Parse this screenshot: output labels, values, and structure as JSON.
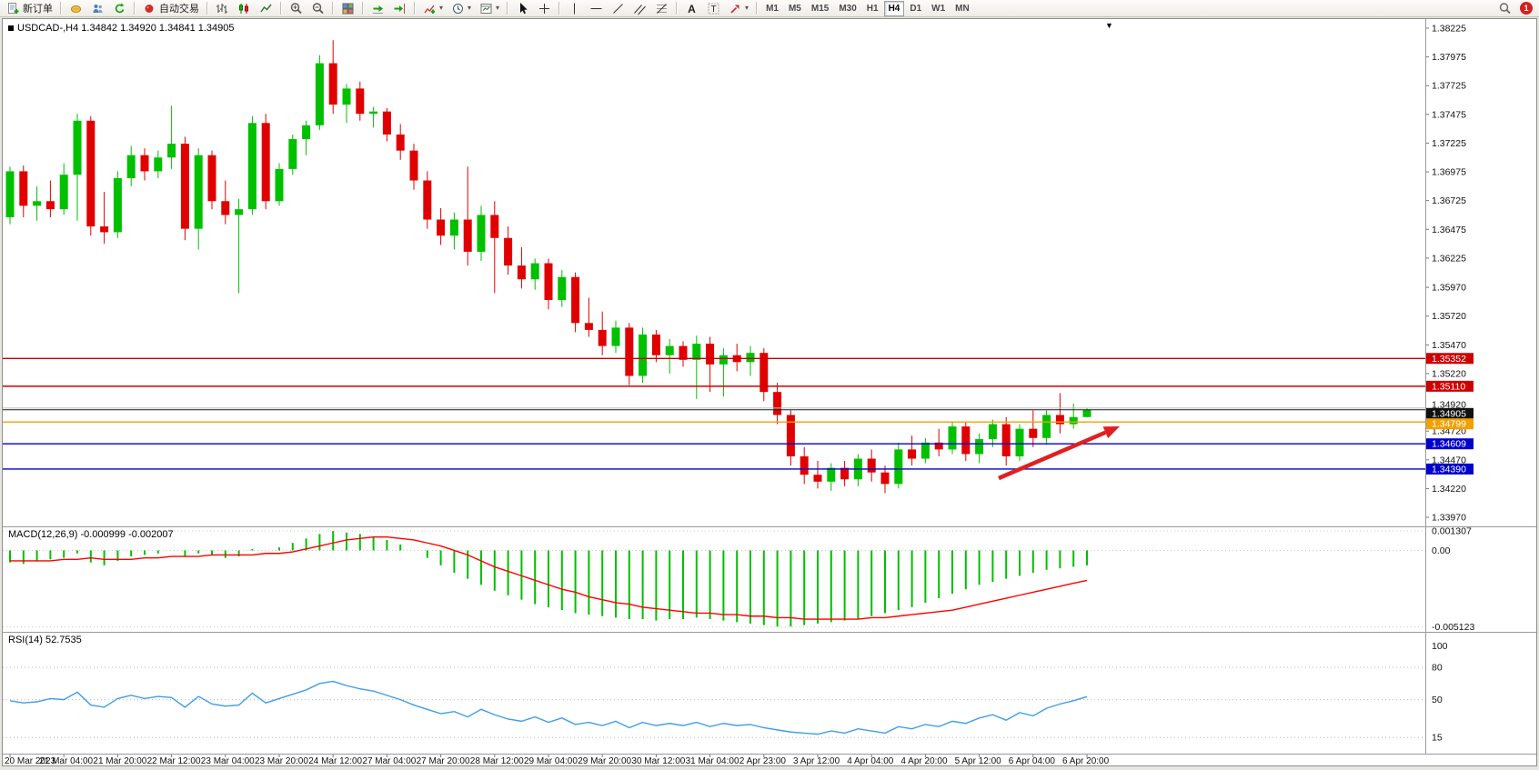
{
  "toolbar": {
    "new_order_label": "新订单",
    "autotrading_label": "自动交易",
    "timeframes": [
      "M1",
      "M5",
      "M15",
      "M30",
      "H1",
      "H4",
      "D1",
      "W1",
      "MN"
    ],
    "active_timeframe": "H4",
    "notification_count": "1"
  },
  "chart_data": [
    {
      "type": "candlestick",
      "symbol": "USDCAD-",
      "timeframe": "H4",
      "title": "USDCAD-,H4  1.34842 1.34920 1.34841 1.34905",
      "ohlc": {
        "open": "1.34842",
        "high": "1.34920",
        "low": "1.34841",
        "close": "1.34905"
      },
      "ylim": [
        1.33891,
        1.38304
      ],
      "y_ticks": [
        "1.38225",
        "1.37975",
        "1.37725",
        "1.37475",
        "1.37225",
        "1.36975",
        "1.36725",
        "1.36475",
        "1.36225",
        "1.35970",
        "1.35720",
        "1.35470",
        "1.35220",
        "1.34970",
        "1.34720",
        "1.34470",
        "1.34220",
        "1.33970"
      ],
      "x_labels": [
        "20 Mar 2023",
        "21 Mar 04:00",
        "21 Mar 20:00",
        "22 Mar 12:00",
        "23 Mar 04:00",
        "23 Mar 20:00",
        "24 Mar 12:00",
        "27 Mar 04:00",
        "27 Mar 20:00",
        "28 Mar 12:00",
        "29 Mar 04:00",
        "29 Mar 20:00",
        "30 Mar 12:00",
        "31 Mar 04:00",
        "2 Apr 23:00",
        "3 Apr 12:00",
        "4 Apr 04:00",
        "4 Apr 20:00",
        "5 Apr 12:00",
        "6 Apr 04:00",
        "6 Apr 20:00"
      ],
      "x_label_every": 4,
      "colors": {
        "up": "#00c000",
        "down": "#e00000",
        "background": "#ffffff"
      },
      "candles": [
        [
          1.3658,
          1.3702,
          1.3652,
          1.3698
        ],
        [
          1.3698,
          1.3703,
          1.3658,
          1.3668
        ],
        [
          1.3668,
          1.3685,
          1.3655,
          1.3672
        ],
        [
          1.3672,
          1.369,
          1.3658,
          1.3665
        ],
        [
          1.3665,
          1.3705,
          1.366,
          1.3695
        ],
        [
          1.3695,
          1.3748,
          1.3655,
          1.3742
        ],
        [
          1.3742,
          1.3746,
          1.3642,
          1.365
        ],
        [
          1.365,
          1.368,
          1.3635,
          1.3645
        ],
        [
          1.3645,
          1.3698,
          1.364,
          1.3692
        ],
        [
          1.3692,
          1.372,
          1.3685,
          1.3712
        ],
        [
          1.3712,
          1.3718,
          1.369,
          1.3698
        ],
        [
          1.3698,
          1.3716,
          1.3692,
          1.371
        ],
        [
          1.371,
          1.3755,
          1.37,
          1.3722
        ],
        [
          1.3722,
          1.3728,
          1.3638,
          1.3648
        ],
        [
          1.3648,
          1.3718,
          1.363,
          1.3712
        ],
        [
          1.3712,
          1.3716,
          1.3665,
          1.3672
        ],
        [
          1.3672,
          1.369,
          1.3652,
          1.366
        ],
        [
          1.366,
          1.3674,
          1.3592,
          1.3665
        ],
        [
          1.3665,
          1.3746,
          1.366,
          1.374
        ],
        [
          1.374,
          1.3748,
          1.3665,
          1.3672
        ],
        [
          1.3672,
          1.3705,
          1.3668,
          1.37
        ],
        [
          1.37,
          1.373,
          1.3695,
          1.3726
        ],
        [
          1.3726,
          1.3742,
          1.3712,
          1.3738
        ],
        [
          1.3738,
          1.3799,
          1.3734,
          1.3792
        ],
        [
          1.3792,
          1.3812,
          1.3748,
          1.3756
        ],
        [
          1.3756,
          1.3774,
          1.374,
          1.377
        ],
        [
          1.377,
          1.3776,
          1.3742,
          1.3748
        ],
        [
          1.3748,
          1.3754,
          1.3736,
          1.375
        ],
        [
          1.375,
          1.3753,
          1.3724,
          1.373
        ],
        [
          1.373,
          1.3739,
          1.3708,
          1.3716
        ],
        [
          1.3716,
          1.3722,
          1.3682,
          1.369
        ],
        [
          1.369,
          1.3698,
          1.3648,
          1.3656
        ],
        [
          1.3656,
          1.3666,
          1.3634,
          1.3642
        ],
        [
          1.3642,
          1.3662,
          1.363,
          1.3656
        ],
        [
          1.3656,
          1.3702,
          1.3616,
          1.3628
        ],
        [
          1.3628,
          1.3668,
          1.362,
          1.366
        ],
        [
          1.366,
          1.3672,
          1.3592,
          1.364
        ],
        [
          1.364,
          1.365,
          1.3608,
          1.3616
        ],
        [
          1.3616,
          1.3632,
          1.3596,
          1.3604
        ],
        [
          1.3604,
          1.3622,
          1.3595,
          1.3618
        ],
        [
          1.3618,
          1.3622,
          1.3578,
          1.3586
        ],
        [
          1.3586,
          1.3612,
          1.358,
          1.3606
        ],
        [
          1.3606,
          1.361,
          1.3558,
          1.3566
        ],
        [
          1.3566,
          1.3588,
          1.3554,
          1.356
        ],
        [
          1.356,
          1.3576,
          1.3538,
          1.3546
        ],
        [
          1.3546,
          1.3568,
          1.354,
          1.3562
        ],
        [
          1.3562,
          1.3566,
          1.3512,
          1.352
        ],
        [
          1.352,
          1.3562,
          1.3514,
          1.3556
        ],
        [
          1.3556,
          1.356,
          1.3532,
          1.3538
        ],
        [
          1.3538,
          1.3552,
          1.3522,
          1.3546
        ],
        [
          1.3546,
          1.355,
          1.3528,
          1.3534
        ],
        [
          1.3534,
          1.3555,
          1.35,
          1.3548
        ],
        [
          1.3548,
          1.3554,
          1.3506,
          1.353
        ],
        [
          1.353,
          1.3544,
          1.3502,
          1.3538
        ],
        [
          1.3538,
          1.3548,
          1.3524,
          1.3532
        ],
        [
          1.3532,
          1.3546,
          1.352,
          1.354
        ],
        [
          1.354,
          1.3544,
          1.3498,
          1.3506
        ],
        [
          1.3506,
          1.3514,
          1.3478,
          1.3486
        ],
        [
          1.3486,
          1.349,
          1.3442,
          1.345
        ],
        [
          1.345,
          1.3458,
          1.3426,
          1.3434
        ],
        [
          1.3434,
          1.3446,
          1.3422,
          1.3428
        ],
        [
          1.3428,
          1.3444,
          1.342,
          1.344
        ],
        [
          1.344,
          1.3446,
          1.3424,
          1.343
        ],
        [
          1.343,
          1.3452,
          1.3424,
          1.3448
        ],
        [
          1.3448,
          1.3456,
          1.3428,
          1.3436
        ],
        [
          1.3436,
          1.3442,
          1.3418,
          1.3426
        ],
        [
          1.3426,
          1.3462,
          1.3422,
          1.3456
        ],
        [
          1.3456,
          1.3468,
          1.3442,
          1.3448
        ],
        [
          1.3448,
          1.3466,
          1.3444,
          1.3462
        ],
        [
          1.3462,
          1.3474,
          1.345,
          1.3456
        ],
        [
          1.3456,
          1.348,
          1.3452,
          1.3476
        ],
        [
          1.3476,
          1.348,
          1.3446,
          1.3452
        ],
        [
          1.3452,
          1.347,
          1.3444,
          1.3465
        ],
        [
          1.3465,
          1.3482,
          1.3458,
          1.3478
        ],
        [
          1.3478,
          1.3484,
          1.3442,
          1.345
        ],
        [
          1.345,
          1.3478,
          1.3446,
          1.3474
        ],
        [
          1.3474,
          1.349,
          1.3458,
          1.3466
        ],
        [
          1.3466,
          1.349,
          1.346,
          1.3486
        ],
        [
          1.3486,
          1.3505,
          1.347,
          1.3478
        ],
        [
          1.3478,
          1.3496,
          1.3474,
          1.34842
        ],
        [
          1.34842,
          1.3492,
          1.34841,
          1.34905
        ]
      ],
      "hlines": [
        {
          "name": "resistance-line-1",
          "price": 1.35352,
          "color": "#cc0000",
          "badge": "1.35352",
          "badge_bg": "#cc0000",
          "draggable": true,
          "label_offset": 0
        },
        {
          "name": "resistance-line-2",
          "price": 1.3511,
          "color": "#cc0000",
          "badge": "1.35110",
          "badge_bg": "#cc0000",
          "draggable": true,
          "label_offset": 0
        },
        {
          "name": "ask-price-line",
          "price": 1.3492,
          "color": "#bbbbbb",
          "badge": "1.34920",
          "badge_bg": null,
          "draggable": false,
          "label_offset": -4
        },
        {
          "name": "bid-price-line",
          "price": 1.34905,
          "color": "#1a1a1a",
          "badge": "1.34905",
          "badge_bg": "#111111",
          "draggable": false,
          "label_offset": 4
        },
        {
          "name": "support-line-orange",
          "price": 1.34799,
          "color": "#f0a000",
          "badge": "1.34799",
          "badge_bg": "#f0a000",
          "draggable": true,
          "label_offset": 2
        },
        {
          "name": "support-line-blue-1",
          "price": 1.34609,
          "color": "#0000cc",
          "badge": "1.34609",
          "badge_bg": "#0000cc",
          "draggable": true,
          "label_offset": 0
        },
        {
          "name": "support-line-blue-2",
          "price": 1.3439,
          "color": "#0000cc",
          "badge": "1.34390",
          "badge_bg": "#0000cc",
          "draggable": true,
          "label_offset": 0
        }
      ],
      "annotation_arrow": {
        "from": [
          1095,
          505
        ],
        "to": [
          1228,
          448
        ],
        "color": "#e02020"
      }
    },
    {
      "type": "macd",
      "label": "MACD(12,26,9) -0.000999 -0.002007",
      "values": {
        "macd": "-0.000999",
        "signal": "-0.002007"
      },
      "ylim": [
        -0.00545,
        0.00155
      ],
      "y_ticks": [
        "0.001307",
        "0.00",
        "-0.005123"
      ],
      "colors": {
        "histogram": "#00c000",
        "signal": "#ff0000"
      },
      "histogram": [
        -0.0008,
        -0.0009,
        -0.0007,
        -0.0006,
        -0.0005,
        -0.0002,
        -0.0008,
        -0.001,
        -0.0007,
        -0.0004,
        -0.0003,
        -0.0002,
        0.0,
        -0.0004,
        -0.0002,
        -0.0003,
        -0.0005,
        -0.0004,
        0.0001,
        0.0,
        0.0002,
        0.0005,
        0.0008,
        0.0011,
        0.0013,
        0.0012,
        0.0011,
        0.0009,
        0.0007,
        0.0004,
        0.0,
        -0.0005,
        -0.001,
        -0.0015,
        -0.0019,
        -0.0023,
        -0.0027,
        -0.003,
        -0.0033,
        -0.0036,
        -0.0038,
        -0.004,
        -0.0042,
        -0.0043,
        -0.0044,
        -0.0045,
        -0.0046,
        -0.0046,
        -0.0047,
        -0.0046,
        -0.0046,
        -0.0045,
        -0.0046,
        -0.0047,
        -0.0048,
        -0.0049,
        -0.005,
        -0.0051,
        -0.0051,
        -0.005,
        -0.0049,
        -0.0048,
        -0.0047,
        -0.0046,
        -0.0044,
        -0.0042,
        -0.004,
        -0.0038,
        -0.0035,
        -0.0032,
        -0.0029,
        -0.0026,
        -0.0023,
        -0.0021,
        -0.0019,
        -0.0017,
        -0.0015,
        -0.0013,
        -0.0012,
        -0.0011,
        -0.000999
      ],
      "signal": [
        -0.0007,
        -0.0007,
        -0.0007,
        -0.0007,
        -0.0006,
        -0.0006,
        -0.0005,
        -0.0006,
        -0.0006,
        -0.0006,
        -0.0005,
        -0.0005,
        -0.0004,
        -0.0004,
        -0.0004,
        -0.0003,
        -0.0003,
        -0.0003,
        -0.0003,
        -0.0002,
        -0.0002,
        -0.0001,
        0.0001,
        0.0003,
        0.0005,
        0.0007,
        0.0008,
        0.0009,
        0.0009,
        0.0008,
        0.0007,
        0.0005,
        0.0003,
        0.0,
        -0.0003,
        -0.0007,
        -0.0011,
        -0.0014,
        -0.0017,
        -0.002,
        -0.0023,
        -0.0026,
        -0.0028,
        -0.0031,
        -0.0033,
        -0.0035,
        -0.0036,
        -0.0038,
        -0.0039,
        -0.004,
        -0.0041,
        -0.0042,
        -0.0042,
        -0.0043,
        -0.0043,
        -0.0044,
        -0.0044,
        -0.0045,
        -0.0045,
        -0.0046,
        -0.0046,
        -0.0046,
        -0.0046,
        -0.0046,
        -0.0045,
        -0.0045,
        -0.0044,
        -0.0043,
        -0.0042,
        -0.0041,
        -0.004,
        -0.0038,
        -0.0036,
        -0.0034,
        -0.0032,
        -0.003,
        -0.0028,
        -0.0026,
        -0.0024,
        -0.0022,
        -0.002007
      ]
    },
    {
      "type": "rsi",
      "label": "RSI(14) 52.7535",
      "current": "52.7535",
      "ylim": [
        0,
        112
      ],
      "levels": [
        80,
        50,
        15
      ],
      "y_ticks": [
        "100",
        "80",
        "50",
        "15"
      ],
      "color": "#3e9fe8",
      "values": [
        49,
        47,
        48,
        51,
        50,
        57,
        45,
        43,
        51,
        54,
        51,
        53,
        52,
        43,
        53,
        46,
        44,
        45,
        56,
        47,
        51,
        55,
        59,
        65,
        67,
        63,
        60,
        58,
        54,
        50,
        45,
        41,
        37,
        39,
        34,
        41,
        36,
        32,
        30,
        34,
        29,
        33,
        27,
        29,
        26,
        30,
        24,
        29,
        26,
        28,
        26,
        29,
        25,
        28,
        26,
        27,
        24,
        22,
        20,
        19,
        18,
        21,
        19,
        23,
        21,
        19,
        25,
        23,
        27,
        25,
        30,
        28,
        33,
        36,
        31,
        38,
        35,
        42,
        46,
        49,
        52.7535
      ]
    }
  ]
}
